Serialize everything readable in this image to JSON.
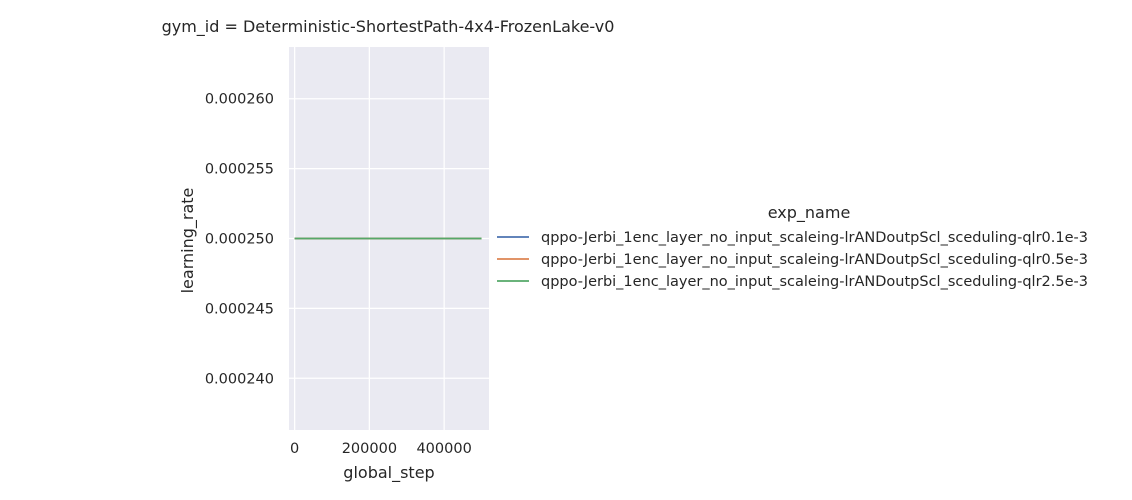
{
  "chart_data": {
    "type": "line",
    "title": "gym_id = Deterministic-ShortestPath-4x4-FrozenLake-v0",
    "xlabel": "global_step",
    "ylabel": "learning_rate",
    "xlim": [
      -15000,
      520000
    ],
    "ylim": [
      0.0002363,
      0.0002637
    ],
    "grid": true,
    "background": "#eaeaf2",
    "gridColor": "#ffffff",
    "x_ticks": [
      0,
      200000,
      400000
    ],
    "x_tick_labels": [
      "0",
      "200000",
      "400000"
    ],
    "y_ticks": [
      0.00024,
      0.000245,
      0.00025,
      0.000255,
      0.00026
    ],
    "y_tick_labels": [
      "0.000240",
      "0.000245",
      "0.000250",
      "0.000255",
      "0.000260"
    ],
    "legend": {
      "title": "exp_name",
      "placement": "right"
    },
    "series": [
      {
        "name": "qppo-Jerbi_1enc_layer_no_input_scaleing-lrANDoutpScl_sceduling-qlr0.1e-3",
        "color": "#4c72b0",
        "x": [
          0,
          500000
        ],
        "y": [
          0.00025,
          0.00025
        ]
      },
      {
        "name": "qppo-Jerbi_1enc_layer_no_input_scaleing-lrANDoutpScl_sceduling-qlr0.5e-3",
        "color": "#dd8452",
        "x": [
          0,
          500000
        ],
        "y": [
          0.00025,
          0.00025
        ]
      },
      {
        "name": "qppo-Jerbi_1enc_layer_no_input_scaleing-lrANDoutpScl_sceduling-qlr2.5e-3",
        "color": "#55a868",
        "x": [
          0,
          500000
        ],
        "y": [
          0.00025,
          0.00025
        ]
      }
    ]
  }
}
